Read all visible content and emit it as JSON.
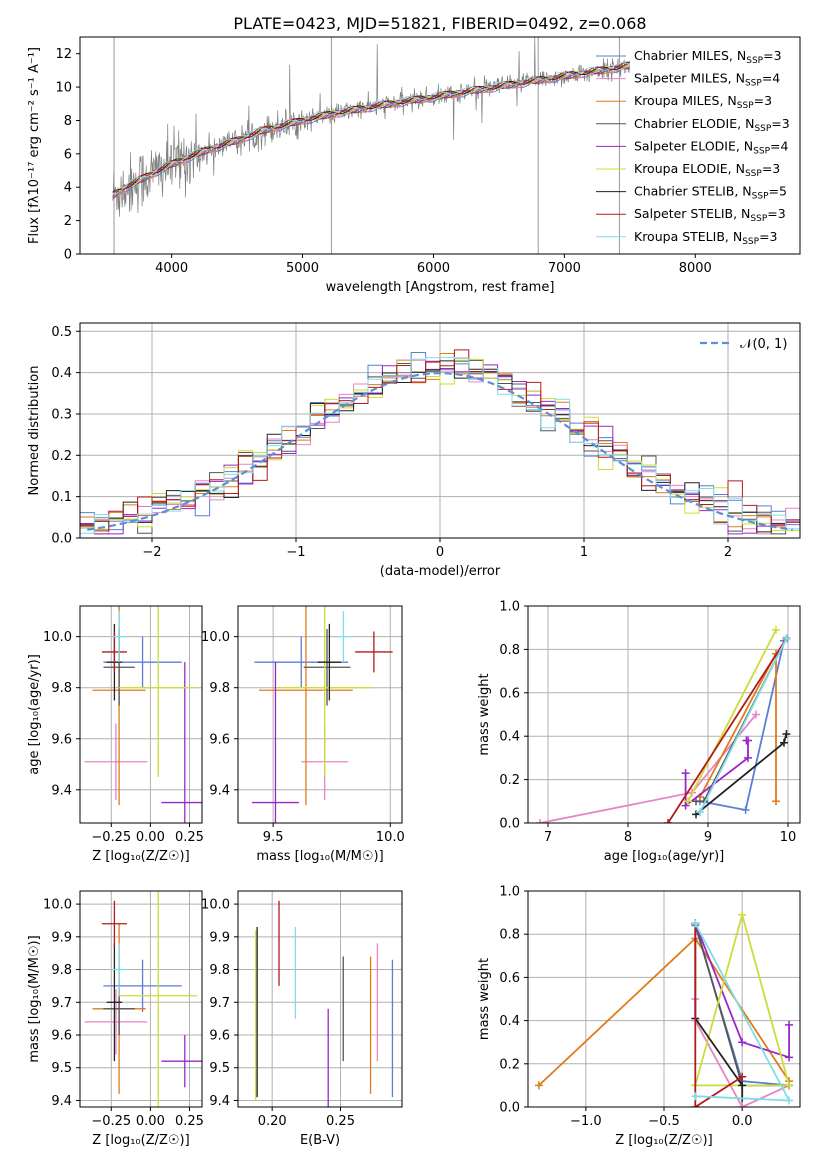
{
  "figure": {
    "title": "PLATE=0423, MJD=51821, FIBERID=0492, z=0.068"
  },
  "colors": {
    "Chabrier MILES": "#5a7fd6",
    "Salpeter MILES": "#e784c4",
    "Kroupa MILES": "#e07b1a",
    "Chabrier ELODIE": "#555555",
    "Salpeter ELODIE": "#9b26c7",
    "Kroupa ELODIE": "#cddc39",
    "Chabrier STELIB": "#222222",
    "Salpeter STELIB": "#b51a1a",
    "Kroupa STELIB": "#80dde8",
    "data": "#808080",
    "normal": "#5b8fd9",
    "grid": "#b0b0b0"
  },
  "chart_data": [
    {
      "id": "spectrum",
      "type": "line",
      "title": "PLATE=0423, MJD=51821, FIBERID=0492, z=0.068",
      "xlabel": "wavelength [Angstrom, rest frame]",
      "ylabel": "Flux [fλ10⁻¹⁷ erg cm⁻² s⁻¹ A⁻¹]",
      "xlim": [
        3300,
        8800
      ],
      "ylim": [
        0,
        13
      ],
      "xticks": [
        4000,
        5000,
        6000,
        7000,
        8000
      ],
      "yticks": [
        0,
        2,
        4,
        6,
        8,
        10,
        12
      ],
      "grid": false,
      "legend_position": "right",
      "continuum_x": [
        3550,
        3650,
        3800,
        3950,
        4100,
        4300,
        4500,
        4700,
        5000,
        5300,
        5600,
        6000,
        6400,
        6800,
        7200,
        7600,
        8000,
        8400
      ],
      "continuum_y": [
        3.5,
        4.0,
        4.6,
        5.2,
        5.7,
        6.3,
        6.8,
        7.4,
        8.0,
        8.5,
        8.9,
        9.4,
        9.9,
        10.4,
        10.9,
        11.4,
        11.8,
        12.1
      ],
      "series": [
        {
          "name": "Chabrier MILES",
          "label_sub": "SSP",
          "label_val": "=3"
        },
        {
          "name": "Salpeter MILES",
          "label_sub": "SSP",
          "label_val": "=4"
        },
        {
          "name": "Kroupa MILES",
          "label_sub": "SSP",
          "label_val": "=3"
        },
        {
          "name": "Chabrier ELODIE",
          "label_sub": "SSP",
          "label_val": "=3"
        },
        {
          "name": "Salpeter ELODIE",
          "label_sub": "SSP",
          "label_val": "=4"
        },
        {
          "name": "Kroupa ELODIE",
          "label_sub": "SSP",
          "label_val": "=3"
        },
        {
          "name": "Chabrier STELIB",
          "label_sub": "SSP",
          "label_val": "=5"
        },
        {
          "name": "Salpeter STELIB",
          "label_sub": "SSP",
          "label_val": "=3"
        },
        {
          "name": "Kroupa STELIB",
          "label_sub": "SSP",
          "label_val": "=3"
        }
      ]
    },
    {
      "id": "residuals",
      "type": "line",
      "xlabel": "(data-model)/error",
      "ylabel": "Normed distribution",
      "xlim": [
        -2.5,
        2.5
      ],
      "ylim": [
        0,
        0.52
      ],
      "xticks": [
        -2,
        -1,
        0,
        1,
        2
      ],
      "yticks": [
        0.0,
        0.1,
        0.2,
        0.3,
        0.4,
        0.5
      ],
      "grid": true,
      "legend_position": "top-right",
      "legend": "𝒩(0, 1)",
      "histogram_bins": [
        -2.5,
        2.5,
        0.1
      ],
      "series": [
        {
          "name": "Chabrier MILES"
        },
        {
          "name": "Salpeter MILES"
        },
        {
          "name": "Kroupa MILES"
        },
        {
          "name": "Chabrier ELODIE"
        },
        {
          "name": "Salpeter ELODIE"
        },
        {
          "name": "Kroupa ELODIE"
        },
        {
          "name": "Chabrier STELIB"
        },
        {
          "name": "Salpeter STELIB"
        },
        {
          "name": "Kroupa STELIB"
        }
      ]
    },
    {
      "id": "age-vs-Z",
      "type": "scatter",
      "xlabel": "Z [log₁₀(Z/Z☉)]",
      "ylabel": "age  [log₁₀(age/yr)]",
      "xlim": [
        -0.45,
        0.33
      ],
      "ylim": [
        9.27,
        10.12
      ],
      "xticks": [
        -0.25,
        0.0,
        0.25
      ],
      "xticklabels": [
        "−0.25",
        "0.00",
        "0.25"
      ],
      "yticks": [
        9.4,
        9.6,
        9.8,
        10.0
      ],
      "grid": true,
      "points": [
        {
          "series": "Chabrier MILES",
          "x": -0.05,
          "y": 9.9,
          "xerr": 0.25,
          "yerr": 0.1
        },
        {
          "series": "Salpeter MILES",
          "x": -0.22,
          "y": 9.51,
          "xerr": 0.2,
          "yerr": 0.15
        },
        {
          "series": "Kroupa MILES",
          "x": -0.2,
          "y": 9.79,
          "xerr": 0.17,
          "yerr": 0.45
        },
        {
          "series": "Chabrier ELODIE",
          "x": -0.2,
          "y": 9.88,
          "xerr": 0.1,
          "yerr": 0.15
        },
        {
          "series": "Salpeter ELODIE",
          "x": 0.22,
          "y": 9.35,
          "xerr": 0.15,
          "yerr": 0.55
        },
        {
          "series": "Kroupa ELODIE",
          "x": 0.05,
          "y": 9.8,
          "xerr": 0.25,
          "yerr": 0.35
        },
        {
          "series": "Chabrier STELIB",
          "x": -0.23,
          "y": 9.9,
          "xerr": 0.05,
          "yerr": 0.15
        },
        {
          "series": "Salpeter STELIB",
          "x": -0.23,
          "y": 9.94,
          "xerr": 0.08,
          "yerr": 0.08
        },
        {
          "series": "Kroupa STELIB",
          "x": -0.2,
          "y": 10.0,
          "xerr": 0.05,
          "yerr": 0.1
        }
      ]
    },
    {
      "id": "age-vs-mass",
      "type": "scatter",
      "xlabel": "mass [log₁₀(M/M☉)]",
      "ylabel": "",
      "xlim": [
        9.35,
        10.05
      ],
      "ylim": [
        9.27,
        10.12
      ],
      "xticks": [
        9.5,
        10.0
      ],
      "xticklabels": [
        "9.5",
        "10.0"
      ],
      "yticks": [
        9.4,
        9.6,
        9.8,
        10.0
      ],
      "grid": true,
      "points": [
        {
          "series": "Chabrier MILES",
          "x": 9.62,
          "y": 9.9,
          "xerr": 0.2,
          "yerr": 0.1
        },
        {
          "series": "Salpeter MILES",
          "x": 9.72,
          "y": 9.51,
          "xerr": 0.1,
          "yerr": 0.15
        },
        {
          "series": "Kroupa MILES",
          "x": 9.64,
          "y": 9.79,
          "xerr": 0.2,
          "yerr": 0.45
        },
        {
          "series": "Chabrier ELODIE",
          "x": 9.73,
          "y": 9.88,
          "xerr": 0.1,
          "yerr": 0.15
        },
        {
          "series": "Salpeter ELODIE",
          "x": 9.51,
          "y": 9.35,
          "xerr": 0.1,
          "yerr": 0.55
        },
        {
          "series": "Kroupa ELODIE",
          "x": 9.72,
          "y": 9.8,
          "xerr": 0.2,
          "yerr": 0.35
        },
        {
          "series": "Chabrier STELIB",
          "x": 9.74,
          "y": 9.9,
          "xerr": 0.05,
          "yerr": 0.15
        },
        {
          "series": "Salpeter STELIB",
          "x": 9.93,
          "y": 9.94,
          "xerr": 0.08,
          "yerr": 0.08
        },
        {
          "series": "Kroupa STELIB",
          "x": 9.8,
          "y": 10.0,
          "xerr": 0.04,
          "yerr": 0.1
        }
      ]
    },
    {
      "id": "massweight-vs-age",
      "type": "line",
      "xlabel": "age  [log₁₀(age/yr)]",
      "ylabel": "mass weight",
      "xlim": [
        6.75,
        10.15
      ],
      "ylim": [
        0,
        1.0
      ],
      "xticks": [
        7,
        8,
        9,
        10
      ],
      "yticks": [
        0.0,
        0.2,
        0.4,
        0.6,
        0.8,
        1.0
      ],
      "grid": true,
      "series": [
        {
          "name": "Chabrier MILES",
          "x": [
            8.9,
            9.47,
            9.95
          ],
          "y": [
            0.1,
            0.06,
            0.84
          ]
        },
        {
          "name": "Salpeter MILES",
          "x": [
            6.9,
            8.8,
            9.6
          ],
          "y": [
            0.0,
            0.14,
            0.5
          ]
        },
        {
          "name": "Kroupa MILES",
          "x": [
            9.85,
            9.85,
            8.9
          ],
          "y": [
            0.1,
            0.78,
            0.12
          ]
        },
        {
          "name": "Chabrier ELODIE",
          "x": [
            8.85,
            8.95,
            9.98
          ],
          "y": [
            0.1,
            0.1,
            0.85
          ]
        },
        {
          "name": "Salpeter ELODIE",
          "x": [
            8.72,
            8.72,
            9.5,
            9.5,
            9.48
          ],
          "y": [
            0.23,
            0.08,
            0.3,
            0.38,
            0.38
          ]
        },
        {
          "name": "Kroupa ELODIE",
          "x": [
            8.75,
            9.85
          ],
          "y": [
            0.1,
            0.89
          ]
        },
        {
          "name": "Chabrier STELIB",
          "x": [
            8.85,
            9.95,
            9.98
          ],
          "y": [
            0.04,
            0.37,
            0.41
          ]
        },
        {
          "name": "Salpeter STELIB",
          "x": [
            8.5,
            9.98
          ],
          "y": [
            0.0,
            0.85
          ]
        },
        {
          "name": "Kroupa STELIB",
          "x": [
            8.9,
            9.98
          ],
          "y": [
            0.05,
            0.85
          ]
        }
      ]
    },
    {
      "id": "mass-vs-Z",
      "type": "scatter",
      "xlabel": "Z [log₁₀(Z/Z☉)]",
      "ylabel": "mass [log₁₀(M/M☉)]",
      "xlim": [
        -0.45,
        0.33
      ],
      "ylim": [
        9.38,
        10.04
      ],
      "xticks": [
        -0.25,
        0.0,
        0.25
      ],
      "xticklabels": [
        "−0.25",
        "0.00",
        "0.25"
      ],
      "yticks": [
        9.4,
        9.5,
        9.6,
        9.7,
        9.8,
        9.9,
        10.0
      ],
      "grid": true,
      "points": [
        {
          "series": "Chabrier MILES",
          "x": -0.05,
          "y": 9.75,
          "xerr": 0.25,
          "yerr": 0.08
        },
        {
          "series": "Salpeter MILES",
          "x": -0.22,
          "y": 9.64,
          "xerr": 0.2,
          "yerr": 0.1
        },
        {
          "series": "Kroupa MILES",
          "x": -0.2,
          "y": 9.68,
          "xerr": 0.17,
          "yerr": 0.26
        },
        {
          "series": "Chabrier ELODIE",
          "x": -0.2,
          "y": 9.68,
          "xerr": 0.1,
          "yerr": 0.08
        },
        {
          "series": "Salpeter ELODIE",
          "x": 0.22,
          "y": 9.52,
          "xerr": 0.15,
          "yerr": 0.08
        },
        {
          "series": "Kroupa ELODIE",
          "x": 0.05,
          "y": 9.72,
          "xerr": 0.25,
          "yerr": 0.34
        },
        {
          "series": "Chabrier STELIB",
          "x": -0.23,
          "y": 9.7,
          "xerr": 0.05,
          "yerr": 0.18
        },
        {
          "series": "Salpeter STELIB",
          "x": -0.23,
          "y": 9.94,
          "xerr": 0.08,
          "yerr": 0.07
        },
        {
          "series": "Kroupa STELIB",
          "x": -0.2,
          "y": 9.8,
          "xerr": 0.05,
          "yerr": 0.08
        }
      ]
    },
    {
      "id": "mass-vs-EBV",
      "type": "scatter",
      "xlabel": "E(B-V)",
      "ylabel": "",
      "xlim": [
        0.175,
        0.295
      ],
      "ylim": [
        9.38,
        10.04
      ],
      "xticks": [
        0.2,
        0.25
      ],
      "xticklabels": [
        "0.20",
        "0.25"
      ],
      "yticks": [
        9.4,
        9.5,
        9.6,
        9.7,
        9.8,
        9.9,
        10.0
      ],
      "grid": true,
      "points": [
        {
          "series": "Chabrier MILES",
          "x": 0.288,
          "y": 9.62,
          "yerr": 0.21
        },
        {
          "series": "Salpeter MILES",
          "x": 0.277,
          "y": 9.7,
          "yerr": 0.18
        },
        {
          "series": "Kroupa MILES",
          "x": 0.272,
          "y": 9.63,
          "yerr": 0.21
        },
        {
          "series": "Chabrier ELODIE",
          "x": 0.252,
          "y": 9.68,
          "yerr": 0.16
        },
        {
          "series": "Salpeter ELODIE",
          "x": 0.241,
          "y": 9.52,
          "yerr": 0.16
        },
        {
          "series": "Kroupa ELODIE",
          "x": 0.188,
          "y": 9.66,
          "yerr": 0.26
        },
        {
          "series": "Chabrier STELIB",
          "x": 0.189,
          "y": 9.67,
          "yerr": 0.26
        },
        {
          "series": "Salpeter STELIB",
          "x": 0.205,
          "y": 9.88,
          "yerr": 0.13
        },
        {
          "series": "Kroupa STELIB",
          "x": 0.217,
          "y": 9.79,
          "yerr": 0.14
        }
      ]
    },
    {
      "id": "massweight-vs-Z",
      "type": "line",
      "xlabel": "Z [log₁₀(Z/Z☉)]",
      "ylabel": "mass weight",
      "xlim": [
        -1.37,
        0.37
      ],
      "ylim": [
        0,
        1.0
      ],
      "xticks": [
        -1.0,
        -0.5,
        0.0
      ],
      "xticklabels": [
        "−1.0",
        "−0.5",
        "0.0"
      ],
      "yticks": [
        0.0,
        0.2,
        0.4,
        0.6,
        0.8,
        1.0
      ],
      "grid": true,
      "series": [
        {
          "name": "Chabrier MILES",
          "x": [
            -0.3,
            0.0,
            0.3
          ],
          "y": [
            0.84,
            0.12,
            0.1
          ]
        },
        {
          "name": "Salpeter MILES",
          "x": [
            -0.3,
            -0.3,
            0.0,
            0.3
          ],
          "y": [
            0.5,
            0.4,
            0.0,
            0.1
          ]
        },
        {
          "name": "Kroupa MILES",
          "x": [
            -1.3,
            -0.3,
            0.3
          ],
          "y": [
            0.1,
            0.78,
            0.12
          ]
        },
        {
          "name": "Chabrier ELODIE",
          "x": [
            -0.3,
            0.0,
            0.3
          ],
          "y": [
            0.85,
            0.1,
            0.1
          ]
        },
        {
          "name": "Salpeter ELODIE",
          "x": [
            -0.3,
            0.0,
            0.3,
            0.3
          ],
          "y": [
            0.85,
            0.3,
            0.23,
            0.38
          ]
        },
        {
          "name": "Kroupa ELODIE",
          "x": [
            -0.3,
            0.0,
            0.3,
            -0.3
          ],
          "y": [
            0.1,
            0.89,
            0.1,
            0.1
          ]
        },
        {
          "name": "Chabrier STELIB",
          "x": [
            -0.3,
            -0.3,
            0.0,
            0.0
          ],
          "y": [
            0.85,
            0.41,
            0.1,
            0.04
          ]
        },
        {
          "name": "Salpeter STELIB",
          "x": [
            -0.3,
            -0.3,
            0.0
          ],
          "y": [
            0.85,
            0.0,
            0.14
          ]
        },
        {
          "name": "Kroupa STELIB",
          "x": [
            -0.3,
            0.3,
            -0.3
          ],
          "y": [
            0.85,
            0.03,
            0.05
          ]
        }
      ]
    }
  ]
}
